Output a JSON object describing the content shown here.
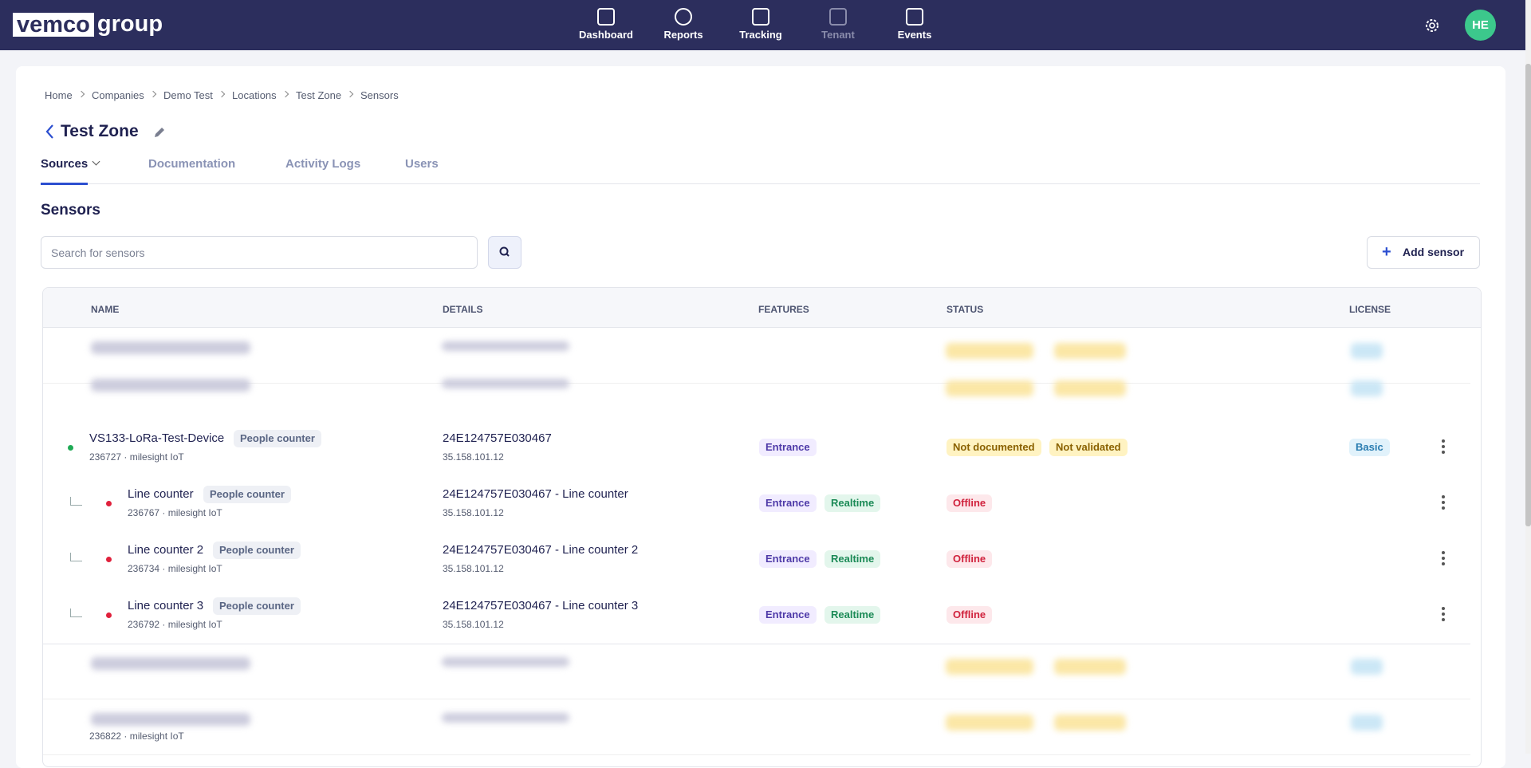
{
  "nav": {
    "logo_box": "vemco",
    "logo_text": "group",
    "items": [
      "Dashboard",
      "Reports",
      "Tracking",
      "Tenant",
      "Events"
    ],
    "avatar": "HE"
  },
  "breadcrumb": [
    "Home",
    "Companies",
    "Demo Test",
    "Locations",
    "Test Zone",
    "Sensors"
  ],
  "page": {
    "title": "Test Zone",
    "tabs": [
      "Sources",
      "Documentation",
      "Activity Logs",
      "Users"
    ],
    "section": "Sensors",
    "search_placeholder": "Search for sensors",
    "add_button": "Add sensor"
  },
  "table": {
    "columns": [
      "NAME",
      "DETAILS",
      "FEATURES",
      "STATUS",
      "LICENSE"
    ],
    "rows": [
      {
        "name": "VS133-LoRa-Test-Device",
        "tag": "People counter",
        "sub": "236727 · milesight IoT",
        "details": "24E124757E030467",
        "ip": "35.158.101.12",
        "features": [
          "Entrance"
        ],
        "status": [
          "Not documented",
          "Not validated"
        ],
        "license": "Basic",
        "child": false,
        "dot": "green"
      },
      {
        "name": "Line counter",
        "tag": "People counter",
        "sub": "236767 · milesight IoT",
        "details": "24E124757E030467 - Line counter",
        "ip": "35.158.101.12",
        "features": [
          "Entrance",
          "Realtime"
        ],
        "status": [
          "Offline"
        ],
        "license": null,
        "child": true,
        "dot": "red"
      },
      {
        "name": "Line counter 2",
        "tag": "People counter",
        "sub": "236734 · milesight IoT",
        "details": "24E124757E030467 - Line counter 2",
        "ip": "35.158.101.12",
        "features": [
          "Entrance",
          "Realtime"
        ],
        "status": [
          "Offline"
        ],
        "license": null,
        "child": true,
        "dot": "red"
      },
      {
        "name": "Line counter 3",
        "tag": "People counter",
        "sub": "236792 · milesight IoT",
        "details": "24E124757E030467 - Line counter 3",
        "ip": "35.158.101.12",
        "features": [
          "Entrance",
          "Realtime"
        ],
        "status": [
          "Offline"
        ],
        "license": null,
        "child": true,
        "dot": "red"
      }
    ],
    "last_row_sub": "236822 · milesight IoT"
  }
}
